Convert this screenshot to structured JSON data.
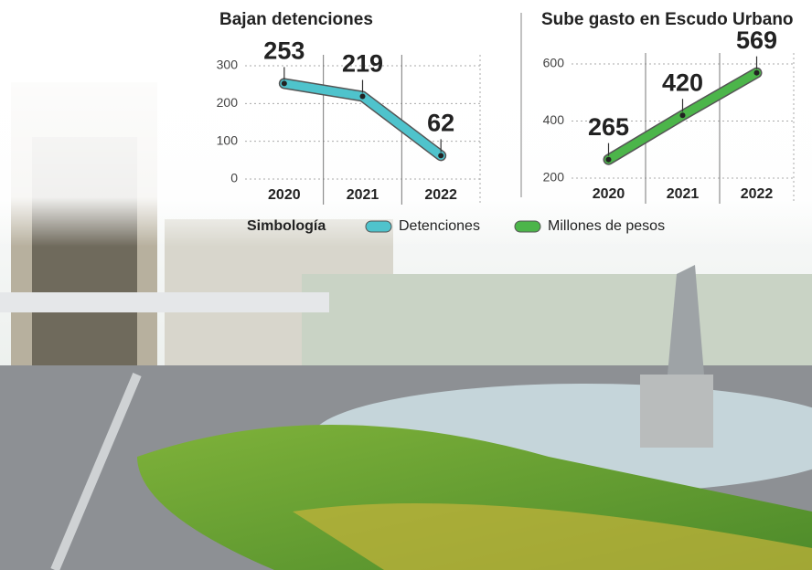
{
  "chart_data": [
    {
      "type": "line",
      "title": "Bajan detenciones",
      "categories": [
        "2020",
        "2021",
        "2022"
      ],
      "series": [
        {
          "name": "Detenciones",
          "color": "#4fc3cc",
          "values": [
            253,
            219,
            62
          ]
        }
      ],
      "ylim": [
        0,
        300
      ],
      "yticks": [
        0,
        100,
        200,
        300
      ],
      "grid": true
    },
    {
      "type": "line",
      "title": "Sube gasto en Escudo Urbano",
      "categories": [
        "2020",
        "2021",
        "2022"
      ],
      "series": [
        {
          "name": "Millones de pesos",
          "color": "#4cb54a",
          "values": [
            265,
            420,
            569
          ]
        }
      ],
      "ylim": [
        200,
        600
      ],
      "yticks": [
        200,
        400,
        600
      ],
      "grid": true
    }
  ],
  "legend_title": "Simbología"
}
